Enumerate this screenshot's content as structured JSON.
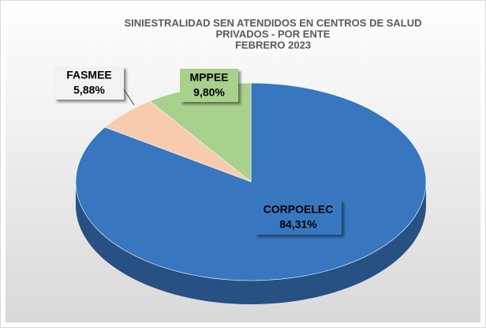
{
  "chart_data": {
    "type": "pie",
    "title": [
      "SINIESTRALIDAD SEN ATENDIDOS EN CENTROS DE SALUD",
      "PRIVADOS - POR ENTE",
      "FEBRERO 2023"
    ],
    "categories": [
      "CORPOELEC",
      "FASMEE",
      "MPPEE"
    ],
    "values": [
      84.31,
      5.88,
      9.8
    ],
    "value_labels": [
      "84,31%",
      "5,88%",
      "9,80%"
    ],
    "colors": [
      "#3877bf",
      "#f8cbad",
      "#a9d18e"
    ]
  }
}
